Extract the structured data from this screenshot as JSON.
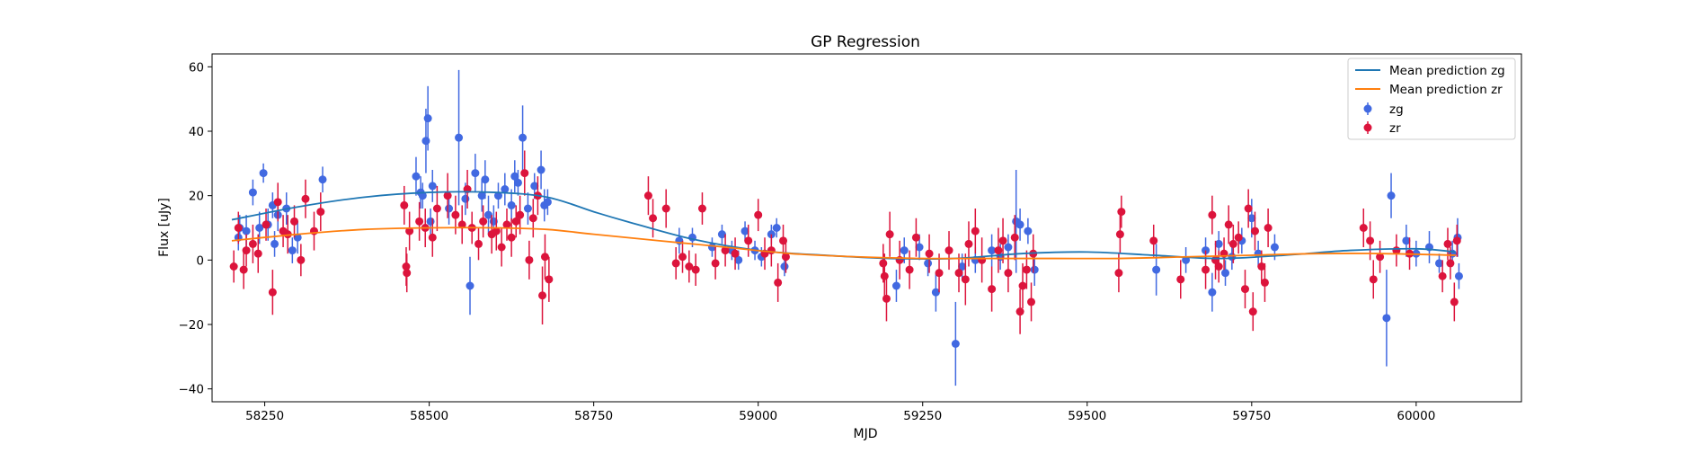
{
  "chart_data": {
    "type": "scatter",
    "title": "GP Regression",
    "xlabel": "MJD",
    "ylabel": "Flux [uJy]",
    "xlim": [
      58170,
      60160
    ],
    "ylim": [
      -44,
      64
    ],
    "xticks": [
      58250,
      58500,
      58750,
      59000,
      59250,
      59500,
      59750,
      60000
    ],
    "yticks": [
      -40,
      -20,
      0,
      20,
      40,
      60
    ],
    "grid": false,
    "legend_position": "top-right",
    "colors": {
      "zg": "#4169e1",
      "zr": "#dc143c",
      "mean_zg": "#1f77b4",
      "mean_zr": "#ff7f0e"
    },
    "legend": [
      "Mean prediction zg",
      "Mean prediction zr",
      "zg",
      "zr"
    ],
    "lines": [
      {
        "name": "Mean prediction zg",
        "x": [
          58200,
          58300,
          58400,
          58500,
          58600,
          58680,
          58750,
          58800,
          58900,
          59000,
          59100,
          59200,
          59300,
          59400,
          59500,
          59600,
          59700,
          59800,
          59900,
          60000,
          60060
        ],
        "y": [
          12.5,
          16.5,
          19.5,
          21.0,
          21.0,
          19.5,
          15.0,
          12.0,
          6.5,
          3.0,
          1.5,
          0.5,
          0.5,
          2.0,
          2.5,
          1.5,
          0.5,
          1.5,
          3.0,
          3.5,
          2.5
        ]
      },
      {
        "name": "Mean prediction zr",
        "x": [
          58200,
          58300,
          58400,
          58500,
          58600,
          58680,
          58750,
          58850,
          58950,
          59050,
          59150,
          59250,
          59350,
          59450,
          59550,
          59650,
          59750,
          59850,
          59950,
          60060
        ],
        "y": [
          6.0,
          8.0,
          9.5,
          10.0,
          10.0,
          9.5,
          8.0,
          6.0,
          4.0,
          2.0,
          1.0,
          0.5,
          0.5,
          0.5,
          0.5,
          1.0,
          1.5,
          2.0,
          2.0,
          1.5
        ]
      }
    ],
    "series": [
      {
        "name": "zg",
        "points": [
          [
            58210,
            7,
            4
          ],
          [
            58212,
            10,
            4
          ],
          [
            58222,
            9,
            5
          ],
          [
            58232,
            21,
            4
          ],
          [
            58242,
            10,
            5
          ],
          [
            58248,
            27,
            3
          ],
          [
            58255,
            11,
            5
          ],
          [
            58262,
            17,
            4
          ],
          [
            58265,
            5,
            4
          ],
          [
            58270,
            14,
            5
          ],
          [
            58283,
            16,
            5
          ],
          [
            58292,
            3,
            4
          ],
          [
            58300,
            7,
            5
          ],
          [
            58338,
            25,
            4
          ],
          [
            58480,
            26,
            6
          ],
          [
            58487,
            21,
            5
          ],
          [
            58490,
            20,
            4
          ],
          [
            58495,
            37,
            10
          ],
          [
            58498,
            44,
            10
          ],
          [
            58502,
            12,
            4
          ],
          [
            58505,
            23,
            5
          ],
          [
            58530,
            16,
            5
          ],
          [
            58545,
            38,
            21
          ],
          [
            58555,
            19,
            5
          ],
          [
            58562,
            -8,
            9
          ],
          [
            58570,
            27,
            6
          ],
          [
            58580,
            20,
            5
          ],
          [
            58585,
            25,
            6
          ],
          [
            58590,
            14,
            6
          ],
          [
            58598,
            12,
            5
          ],
          [
            58605,
            20,
            4
          ],
          [
            58615,
            22,
            5
          ],
          [
            58625,
            17,
            5
          ],
          [
            58630,
            26,
            5
          ],
          [
            58635,
            24,
            4
          ],
          [
            58642,
            38,
            10
          ],
          [
            58650,
            16,
            5
          ],
          [
            58660,
            23,
            4
          ],
          [
            58670,
            28,
            6
          ],
          [
            58675,
            17,
            5
          ],
          [
            58680,
            18,
            4
          ],
          [
            58880,
            6,
            4
          ],
          [
            58900,
            7,
            3
          ],
          [
            58930,
            4,
            3
          ],
          [
            58945,
            8,
            3
          ],
          [
            58960,
            3,
            3
          ],
          [
            58970,
            0,
            3
          ],
          [
            58980,
            9,
            3
          ],
          [
            58995,
            3,
            3
          ],
          [
            59005,
            1,
            3
          ],
          [
            59020,
            8,
            3
          ],
          [
            59028,
            10,
            3
          ],
          [
            59040,
            -2,
            3
          ],
          [
            59210,
            -8,
            5
          ],
          [
            59222,
            3,
            4
          ],
          [
            59245,
            4,
            4
          ],
          [
            59258,
            -1,
            4
          ],
          [
            59270,
            -10,
            6
          ],
          [
            59300,
            -26,
            13
          ],
          [
            59310,
            -2,
            4
          ],
          [
            59330,
            0,
            4
          ],
          [
            59355,
            3,
            5
          ],
          [
            59368,
            1,
            4
          ],
          [
            59380,
            4,
            4
          ],
          [
            59392,
            12,
            16
          ],
          [
            59398,
            11,
            5
          ],
          [
            59410,
            9,
            4
          ],
          [
            59420,
            -3,
            5
          ],
          [
            59605,
            -3,
            8
          ],
          [
            59650,
            0,
            4
          ],
          [
            59680,
            3,
            4
          ],
          [
            59690,
            -10,
            6
          ],
          [
            59700,
            5,
            4
          ],
          [
            59710,
            -4,
            4
          ],
          [
            59720,
            1,
            4
          ],
          [
            59735,
            6,
            4
          ],
          [
            59750,
            13,
            6
          ],
          [
            59760,
            2,
            4
          ],
          [
            59785,
            4,
            4
          ],
          [
            59955,
            -18,
            15
          ],
          [
            59962,
            20,
            7
          ],
          [
            59985,
            6,
            5
          ],
          [
            60000,
            2,
            4
          ],
          [
            60020,
            4,
            5
          ],
          [
            60035,
            -1,
            3
          ],
          [
            60055,
            2,
            4
          ],
          [
            60063,
            7,
            6
          ],
          [
            60065,
            -5,
            4
          ]
        ]
      },
      {
        "name": "zr",
        "points": [
          [
            58203,
            -2,
            5
          ],
          [
            58210,
            10,
            5
          ],
          [
            58218,
            -3,
            6
          ],
          [
            58222,
            3,
            5
          ],
          [
            58232,
            5,
            6
          ],
          [
            58240,
            2,
            6
          ],
          [
            58252,
            11,
            5
          ],
          [
            58262,
            -10,
            7
          ],
          [
            58270,
            18,
            6
          ],
          [
            58278,
            9,
            5
          ],
          [
            58285,
            8,
            6
          ],
          [
            58295,
            12,
            5
          ],
          [
            58305,
            0,
            5
          ],
          [
            58312,
            19,
            6
          ],
          [
            58325,
            9,
            6
          ],
          [
            58335,
            15,
            6
          ],
          [
            58462,
            17,
            6
          ],
          [
            58465,
            -2,
            6
          ],
          [
            58466,
            -4,
            6
          ],
          [
            58470,
            9,
            6
          ],
          [
            58485,
            12,
            6
          ],
          [
            58494,
            10,
            6
          ],
          [
            58505,
            7,
            6
          ],
          [
            58512,
            16,
            7
          ],
          [
            58528,
            20,
            7
          ],
          [
            58540,
            14,
            6
          ],
          [
            58550,
            11,
            6
          ],
          [
            58558,
            22,
            6
          ],
          [
            58565,
            10,
            5
          ],
          [
            58575,
            5,
            5
          ],
          [
            58582,
            12,
            5
          ],
          [
            58595,
            8,
            6
          ],
          [
            58602,
            9,
            6
          ],
          [
            58610,
            4,
            6
          ],
          [
            58618,
            11,
            5
          ],
          [
            58625,
            7,
            6
          ],
          [
            58632,
            12,
            5
          ],
          [
            58638,
            14,
            6
          ],
          [
            58645,
            27,
            7
          ],
          [
            58652,
            0,
            6
          ],
          [
            58658,
            13,
            6
          ],
          [
            58665,
            20,
            6
          ],
          [
            58672,
            -11,
            9
          ],
          [
            58676,
            1,
            7
          ],
          [
            58682,
            -6,
            7
          ],
          [
            58833,
            20,
            6
          ],
          [
            58840,
            13,
            6
          ],
          [
            58860,
            16,
            6
          ],
          [
            58875,
            -1,
            5
          ],
          [
            58885,
            1,
            5
          ],
          [
            58895,
            -2,
            5
          ],
          [
            58905,
            -3,
            5
          ],
          [
            58915,
            16,
            5
          ],
          [
            58935,
            -1,
            5
          ],
          [
            58950,
            3,
            5
          ],
          [
            58965,
            2,
            5
          ],
          [
            58985,
            6,
            5
          ],
          [
            59000,
            14,
            5
          ],
          [
            59010,
            2,
            5
          ],
          [
            59020,
            3,
            5
          ],
          [
            59030,
            -7,
            6
          ],
          [
            59038,
            6,
            5
          ],
          [
            59042,
            1,
            5
          ],
          [
            59190,
            -1,
            6
          ],
          [
            59192,
            -5,
            7
          ],
          [
            59195,
            -12,
            7
          ],
          [
            59200,
            8,
            7
          ],
          [
            59215,
            0,
            6
          ],
          [
            59230,
            -3,
            6
          ],
          [
            59240,
            7,
            6
          ],
          [
            59260,
            2,
            6
          ],
          [
            59275,
            -4,
            6
          ],
          [
            59290,
            3,
            6
          ],
          [
            59305,
            -4,
            6
          ],
          [
            59315,
            -6,
            8
          ],
          [
            59320,
            5,
            7
          ],
          [
            59330,
            9,
            7
          ],
          [
            59340,
            0,
            7
          ],
          [
            59355,
            -9,
            7
          ],
          [
            59365,
            3,
            7
          ],
          [
            59372,
            6,
            7
          ],
          [
            59380,
            -4,
            6
          ],
          [
            59390,
            7,
            7
          ],
          [
            59398,
            -16,
            7
          ],
          [
            59402,
            -8,
            7
          ],
          [
            59408,
            -3,
            6
          ],
          [
            59415,
            -13,
            6
          ],
          [
            59418,
            2,
            6
          ],
          [
            59548,
            -4,
            6
          ],
          [
            59550,
            8,
            6
          ],
          [
            59552,
            15,
            5
          ],
          [
            59601,
            6,
            5
          ],
          [
            59642,
            -6,
            6
          ],
          [
            59680,
            -3,
            6
          ],
          [
            59690,
            14,
            6
          ],
          [
            59695,
            0,
            6
          ],
          [
            59700,
            -2,
            5
          ],
          [
            59708,
            2,
            5
          ],
          [
            59715,
            11,
            6
          ],
          [
            59722,
            5,
            6
          ],
          [
            59730,
            7,
            5
          ],
          [
            59740,
            -9,
            6
          ],
          [
            59745,
            16,
            6
          ],
          [
            59752,
            -16,
            6
          ],
          [
            59755,
            9,
            6
          ],
          [
            59765,
            -2,
            5
          ],
          [
            59770,
            -7,
            6
          ],
          [
            59775,
            10,
            6
          ],
          [
            59920,
            10,
            6
          ],
          [
            59930,
            6,
            6
          ],
          [
            59935,
            -6,
            6
          ],
          [
            59945,
            1,
            5
          ],
          [
            59970,
            3,
            5
          ],
          [
            59990,
            2,
            5
          ],
          [
            60040,
            -5,
            5
          ],
          [
            60048,
            5,
            5
          ],
          [
            60052,
            -1,
            5
          ],
          [
            60058,
            -13,
            6
          ],
          [
            60062,
            6,
            5
          ]
        ]
      }
    ]
  }
}
